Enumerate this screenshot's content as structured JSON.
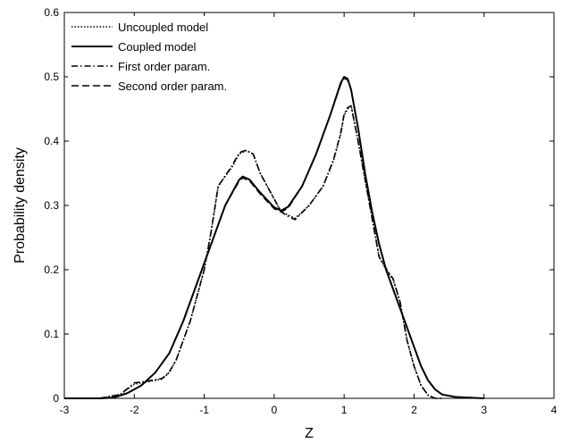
{
  "chart_data": {
    "type": "line",
    "title": "",
    "xlabel": "Z",
    "ylabel": "Probability density",
    "xlim": [
      -3,
      4
    ],
    "ylim": [
      0,
      0.6
    ],
    "xticks": [
      "-3",
      "-2",
      "-1",
      "0",
      "1",
      "2",
      "3",
      "4"
    ],
    "yticks": [
      "0",
      "0.1",
      "0.2",
      "0.3",
      "0.4",
      "0.5",
      "0.6"
    ],
    "grid": false,
    "legend_position": "top-left",
    "series": [
      {
        "name": "Uncoupled model",
        "style": "dotted",
        "x": [
          -2.5,
          -2.2,
          -2.0,
          -1.8,
          -1.6,
          -1.5,
          -1.4,
          -1.2,
          -1.0,
          -0.9,
          -0.8,
          -0.6,
          -0.5,
          -0.4,
          -0.3,
          -0.2,
          0.0,
          0.1,
          0.2,
          0.3,
          0.5,
          0.7,
          0.85,
          0.95,
          1.0,
          1.05,
          1.1,
          1.2,
          1.4,
          1.5,
          1.6,
          1.7,
          1.8,
          1.9,
          2.0,
          2.1,
          2.2,
          2.3,
          2.4
        ],
        "y": [
          0.0,
          0.006,
          0.022,
          0.026,
          0.03,
          0.04,
          0.06,
          0.12,
          0.2,
          0.26,
          0.33,
          0.36,
          0.38,
          0.385,
          0.38,
          0.35,
          0.31,
          0.29,
          0.285,
          0.28,
          0.3,
          0.33,
          0.37,
          0.41,
          0.44,
          0.45,
          0.455,
          0.4,
          0.28,
          0.22,
          0.2,
          0.185,
          0.15,
          0.09,
          0.05,
          0.02,
          0.005,
          0.0,
          0.0
        ]
      },
      {
        "name": "Coupled model",
        "style": "solid",
        "x": [
          -3.0,
          -2.5,
          -2.3,
          -2.1,
          -1.9,
          -1.7,
          -1.5,
          -1.3,
          -1.1,
          -0.9,
          -0.7,
          -0.5,
          -0.45,
          -0.35,
          -0.2,
          0.0,
          0.1,
          0.2,
          0.4,
          0.6,
          0.8,
          0.95,
          1.0,
          1.05,
          1.1,
          1.2,
          1.3,
          1.4,
          1.5,
          1.6,
          1.7,
          1.8,
          1.9,
          2.0,
          2.1,
          2.2,
          2.3,
          2.4,
          2.6,
          3.0
        ],
        "y": [
          0.0,
          0.0,
          0.001,
          0.008,
          0.02,
          0.04,
          0.07,
          0.12,
          0.18,
          0.24,
          0.3,
          0.34,
          0.345,
          0.34,
          0.32,
          0.297,
          0.292,
          0.298,
          0.33,
          0.38,
          0.44,
          0.49,
          0.5,
          0.497,
          0.48,
          0.42,
          0.35,
          0.29,
          0.24,
          0.2,
          0.17,
          0.14,
          0.11,
          0.08,
          0.05,
          0.028,
          0.014,
          0.006,
          0.002,
          0.0
        ]
      },
      {
        "name": "First order param.",
        "style": "dashdot",
        "x": [
          -2.5,
          -2.2,
          -2.0,
          -1.8,
          -1.6,
          -1.5,
          -1.4,
          -1.2,
          -1.0,
          -0.9,
          -0.8,
          -0.6,
          -0.5,
          -0.4,
          -0.3,
          -0.2,
          0.0,
          0.1,
          0.2,
          0.3,
          0.5,
          0.7,
          0.85,
          0.95,
          1.0,
          1.05,
          1.1,
          1.2,
          1.4,
          1.5,
          1.6,
          1.7,
          1.8,
          1.9,
          2.0,
          2.1,
          2.2,
          2.3,
          2.4
        ],
        "y": [
          0.0,
          0.006,
          0.024,
          0.027,
          0.031,
          0.041,
          0.06,
          0.12,
          0.2,
          0.26,
          0.33,
          0.362,
          0.382,
          0.386,
          0.38,
          0.35,
          0.31,
          0.29,
          0.283,
          0.278,
          0.3,
          0.33,
          0.372,
          0.412,
          0.442,
          0.452,
          0.455,
          0.4,
          0.28,
          0.22,
          0.202,
          0.186,
          0.15,
          0.09,
          0.05,
          0.02,
          0.005,
          0.0,
          0.0
        ]
      },
      {
        "name": "Second order param.",
        "style": "dashed",
        "x": [
          -3.0,
          -2.5,
          -2.3,
          -2.1,
          -1.9,
          -1.7,
          -1.5,
          -1.3,
          -1.1,
          -0.9,
          -0.7,
          -0.5,
          -0.45,
          -0.35,
          -0.2,
          0.0,
          0.1,
          0.2,
          0.4,
          0.6,
          0.8,
          0.95,
          1.0,
          1.05,
          1.1,
          1.2,
          1.3,
          1.4,
          1.5,
          1.6,
          1.7,
          1.8,
          1.9,
          2.0,
          2.1,
          2.2,
          2.3,
          2.4,
          2.6,
          3.0
        ],
        "y": [
          0.0,
          0.0,
          0.001,
          0.008,
          0.02,
          0.04,
          0.07,
          0.12,
          0.18,
          0.24,
          0.3,
          0.338,
          0.343,
          0.338,
          0.318,
          0.295,
          0.29,
          0.296,
          0.33,
          0.38,
          0.44,
          0.488,
          0.498,
          0.495,
          0.48,
          0.42,
          0.35,
          0.29,
          0.24,
          0.2,
          0.17,
          0.14,
          0.11,
          0.08,
          0.05,
          0.028,
          0.014,
          0.006,
          0.002,
          0.0
        ]
      }
    ]
  }
}
